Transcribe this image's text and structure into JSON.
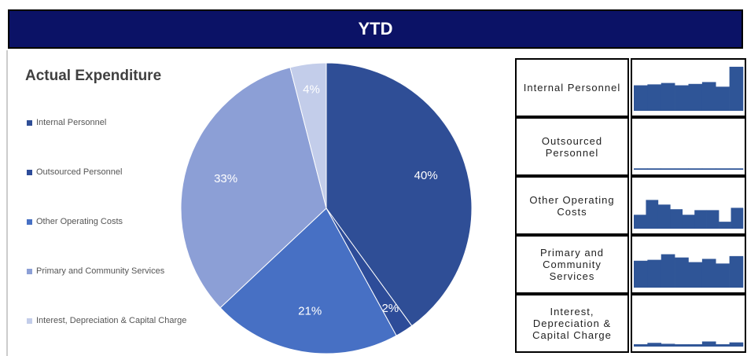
{
  "header": {
    "title": "YTD"
  },
  "chart_data": [
    {
      "type": "pie",
      "title": "Actual Expenditure",
      "categories": [
        "Internal Personnel",
        "Outsourced Personnel",
        "Other Operating Costs",
        "Primary and Community Services",
        "Interest, Depreciation & Capital Charge"
      ],
      "values": [
        40,
        2,
        21,
        33,
        4
      ],
      "value_labels": [
        "40%",
        "2%",
        "21%",
        "33%",
        "4%"
      ],
      "colors": [
        "#2f4e96",
        "#2d4c99",
        "#4770c4",
        "#8c9fd6",
        "#c3cdea"
      ]
    },
    {
      "type": "bar",
      "title": "Internal Personnel",
      "color": "#2f5597",
      "ylim": [
        0,
        100
      ],
      "values": [
        55,
        57,
        60,
        55,
        58,
        62,
        52,
        95
      ]
    },
    {
      "type": "bar",
      "title": "Outsourced Personnel",
      "color": "#2f5597",
      "ylim": [
        0,
        100
      ],
      "values": [
        3,
        3,
        3,
        3,
        3,
        3,
        3,
        3
      ]
    },
    {
      "type": "bar",
      "title": "Other Operating Costs",
      "color": "#2f5597",
      "ylim": [
        0,
        100
      ],
      "values": [
        30,
        62,
        52,
        42,
        30,
        40,
        40,
        15,
        45
      ]
    },
    {
      "type": "bar",
      "title": "Primary and Community Services",
      "color": "#2f5597",
      "ylim": [
        0,
        100
      ],
      "values": [
        58,
        60,
        72,
        65,
        55,
        62,
        52,
        68
      ]
    },
    {
      "type": "bar",
      "title": "Interest, Depreciation & Capital Charge",
      "color": "#2f5597",
      "ylim": [
        0,
        100
      ],
      "values": [
        5,
        8,
        6,
        5,
        5,
        11,
        5,
        9
      ]
    }
  ]
}
